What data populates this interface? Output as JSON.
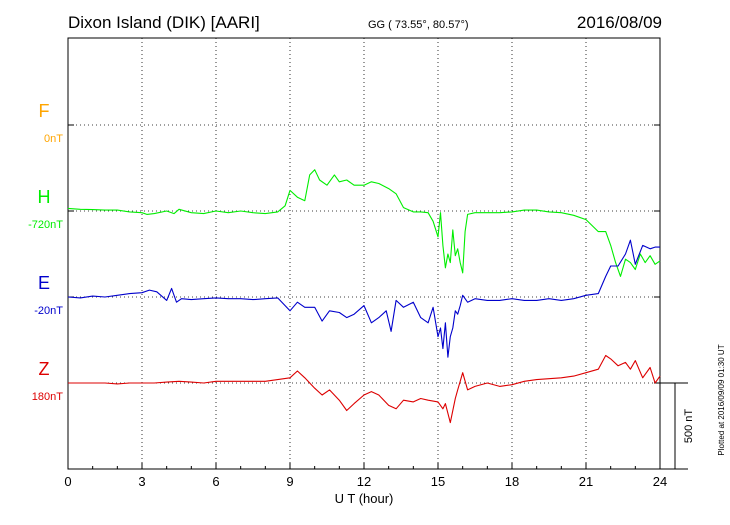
{
  "chart_data": {
    "type": "line",
    "title": "Dixon Island (DIK)  [AARI]",
    "coords": "GG ( 73.55°,  80.57°)",
    "date": "2016/08/09",
    "xlabel": "U T (hour)",
    "xlim": [
      0,
      24
    ],
    "xticks": [
      0,
      3,
      6,
      9,
      12,
      15,
      18,
      21,
      24
    ],
    "grid": true,
    "scale_label": "500 nT",
    "footer": "Plotted at 2016/09/09 01:30 UT",
    "units_per_row": 500,
    "series": [
      {
        "name": "F",
        "offset_label": "0nT",
        "color": "#ffa500",
        "x": [],
        "y": []
      },
      {
        "name": "H",
        "offset_label": "-720nT",
        "color": "#00ee00",
        "x": [
          0,
          0.5,
          1,
          1.5,
          2,
          2.5,
          3,
          3.2,
          3.5,
          4,
          4.3,
          4.5,
          5,
          5.5,
          6,
          6.5,
          7,
          7.5,
          8,
          8.5,
          8.8,
          9,
          9.3,
          9.6,
          9.8,
          10,
          10.2,
          10.5,
          10.8,
          11,
          11.3,
          11.6,
          12,
          12.3,
          12.6,
          13,
          13.3,
          13.6,
          14,
          14.3,
          14.6,
          14.8,
          15,
          15.1,
          15.2,
          15.3,
          15.4,
          15.5,
          15.6,
          15.7,
          15.8,
          15.9,
          16,
          16.1,
          16.2,
          16.5,
          17,
          17.5,
          18,
          18.5,
          19,
          19.5,
          20,
          20.5,
          21,
          21.5,
          21.8,
          22,
          22.2,
          22.4,
          22.6,
          22.8,
          23,
          23.2,
          23.4,
          23.6,
          23.8,
          24
        ],
        "y": [
          15,
          10,
          8,
          5,
          5,
          -5,
          -10,
          -20,
          -15,
          0,
          -15,
          10,
          -10,
          -15,
          0,
          -10,
          0,
          -10,
          -15,
          -5,
          30,
          120,
          80,
          60,
          210,
          240,
          180,
          150,
          210,
          170,
          180,
          150,
          150,
          170,
          160,
          130,
          100,
          20,
          -5,
          -5,
          -10,
          -60,
          -150,
          -10,
          -200,
          -330,
          -250,
          -300,
          -110,
          -260,
          -220,
          -300,
          -360,
          -120,
          -20,
          -10,
          -10,
          -10,
          -5,
          5,
          5,
          -5,
          -10,
          -25,
          -50,
          -120,
          -120,
          -200,
          -300,
          -380,
          -280,
          -300,
          -340,
          -250,
          -300,
          -260,
          -310,
          -290
        ]
      },
      {
        "name": "E",
        "offset_label": "-20nT",
        "color": "#0000cc",
        "x": [
          0,
          0.5,
          1,
          1.5,
          2,
          2.5,
          3,
          3.3,
          3.6,
          4,
          4.2,
          4.4,
          4.6,
          5,
          5.5,
          6,
          6.5,
          7,
          7.5,
          8,
          8.5,
          9,
          9.3,
          9.6,
          10,
          10.3,
          10.6,
          11,
          11.3,
          11.6,
          12,
          12.3,
          12.6,
          12.9,
          13.1,
          13.3,
          13.6,
          14,
          14.3,
          14.6,
          14.8,
          15,
          15.1,
          15.2,
          15.3,
          15.4,
          15.5,
          15.6,
          15.7,
          15.8,
          15.9,
          16,
          16.2,
          16.5,
          17,
          17.5,
          18,
          18.5,
          19,
          19.5,
          20,
          20.5,
          21,
          21.5,
          21.8,
          22,
          22.3,
          22.6,
          22.8,
          23,
          23.3,
          23.6,
          23.8,
          24
        ],
        "y": [
          0,
          -5,
          5,
          0,
          10,
          20,
          25,
          40,
          30,
          -20,
          50,
          -30,
          -10,
          -15,
          -10,
          -5,
          -10,
          -10,
          -15,
          -10,
          -5,
          -80,
          -30,
          -60,
          -60,
          -140,
          -80,
          -90,
          -120,
          -100,
          -50,
          -150,
          -120,
          -80,
          -200,
          -20,
          -60,
          -30,
          -120,
          -150,
          -60,
          -230,
          -180,
          -300,
          -150,
          -350,
          -230,
          -180,
          -80,
          -100,
          -50,
          10,
          -30,
          -10,
          -20,
          -20,
          -10,
          -20,
          -20,
          -10,
          -20,
          -10,
          10,
          20,
          120,
          180,
          180,
          250,
          330,
          190,
          300,
          280,
          290,
          290
        ]
      },
      {
        "name": "Z",
        "offset_label": "180nT",
        "color": "#dd0000",
        "x": [
          0,
          0.5,
          1,
          1.5,
          2,
          2.5,
          3,
          3.5,
          4,
          4.5,
          5,
          5.5,
          6,
          6.5,
          7,
          7.5,
          8,
          8.5,
          9,
          9.3,
          9.6,
          10,
          10.3,
          10.6,
          11,
          11.3,
          11.6,
          12,
          12.3,
          12.6,
          13,
          13.3,
          13.6,
          14,
          14.3,
          14.6,
          15,
          15.2,
          15.3,
          15.5,
          15.7,
          15.8,
          16,
          16.2,
          16.5,
          17,
          17.5,
          18,
          18.5,
          19,
          19.5,
          20,
          20.5,
          21,
          21.5,
          21.8,
          22,
          22.3,
          22.6,
          22.8,
          23,
          23.3,
          23.6,
          23.8,
          24
        ],
        "y": [
          0,
          0,
          0,
          0,
          -5,
          0,
          0,
          0,
          5,
          10,
          5,
          0,
          10,
          10,
          10,
          10,
          10,
          20,
          30,
          70,
          30,
          -30,
          -70,
          -40,
          -100,
          -160,
          -120,
          -70,
          -50,
          -70,
          -130,
          -150,
          -100,
          -110,
          -90,
          -100,
          -110,
          -150,
          -120,
          -230,
          -90,
          -40,
          60,
          -40,
          -20,
          0,
          -20,
          -10,
          10,
          20,
          25,
          30,
          40,
          60,
          80,
          160,
          140,
          100,
          120,
          80,
          130,
          30,
          90,
          0,
          40
        ]
      }
    ]
  }
}
